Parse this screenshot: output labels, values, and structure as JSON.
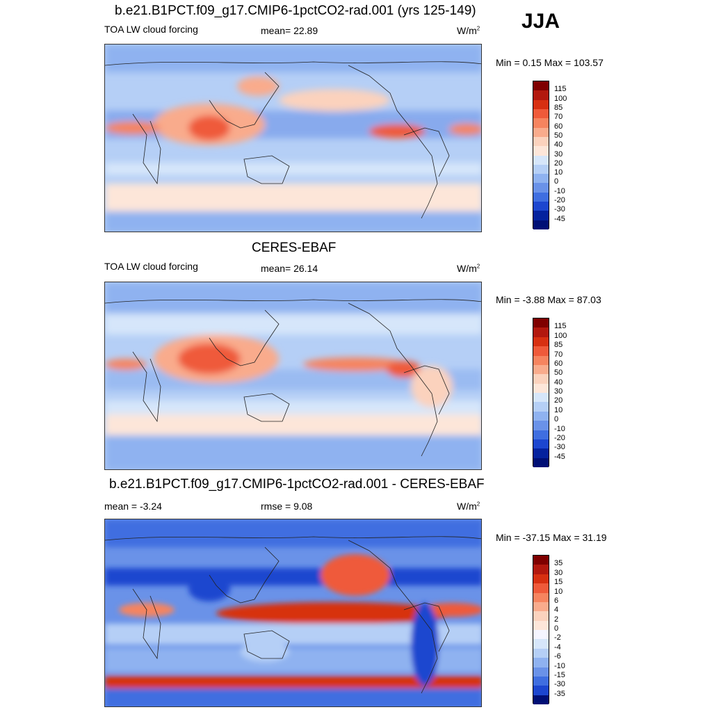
{
  "season": "JJA",
  "panels": [
    {
      "title": "b.e21.B1PCT.f09_g17.CMIP6-1pctCO2-rad.001 (yrs 125-149)",
      "variable": "TOA LW cloud forcing",
      "stat_left": "",
      "stat_center": "mean=  22.89",
      "units": "W/m",
      "units_sup": "2",
      "minmax": "Min =   0.15 Max = 103.57",
      "colorbar_labels": [
        "115",
        "100",
        "85",
        "70",
        "60",
        "50",
        "40",
        "30",
        "20",
        "10",
        "0",
        "-10",
        "-20",
        "-30",
        "-45"
      ]
    },
    {
      "title": "CERES-EBAF",
      "variable": "TOA LW cloud forcing",
      "stat_left": "",
      "stat_center": "mean=  26.14",
      "units": "W/m",
      "units_sup": "2",
      "minmax": "Min =  -3.88 Max =  87.03",
      "colorbar_labels": [
        "115",
        "100",
        "85",
        "70",
        "60",
        "50",
        "40",
        "30",
        "20",
        "10",
        "0",
        "-10",
        "-20",
        "-30",
        "-45"
      ]
    },
    {
      "title": "b.e21.B1PCT.f09_g17.CMIP6-1pctCO2-rad.001 - CERES-EBAF",
      "variable": "",
      "stat_left": "mean =  -3.24",
      "stat_center": "rmse =   9.08",
      "units": "W/m",
      "units_sup": "2",
      "minmax": "Min = -37.15 Max =  31.19",
      "colorbar_labels": [
        "35",
        "30",
        "15",
        "10",
        "6",
        "4",
        "2",
        "0",
        "-2",
        "-4",
        "-6",
        "-10",
        "-15",
        "-30",
        "-35"
      ]
    }
  ],
  "colors": {
    "abs_scale": [
      "#7f0000",
      "#b2180e",
      "#d73011",
      "#ef5a3a",
      "#f6845f",
      "#f9ab8c",
      "#fbd2bd",
      "#fde6d9",
      "#d6e6fa",
      "#b5cff6",
      "#8fb2f0",
      "#6a92e8",
      "#3f6ee0",
      "#1c46cf",
      "#05229e",
      "#000f75"
    ],
    "diff_scale": [
      "#7f0000",
      "#b2180e",
      "#d73011",
      "#ef5a3a",
      "#f6845f",
      "#f9ab8c",
      "#fbd2bd",
      "#fde6d9",
      "#f5f5ff",
      "#d6e6fa",
      "#b5cff6",
      "#8fb2f0",
      "#6a92e8",
      "#3f6ee0",
      "#1c46cf",
      "#000f75"
    ]
  }
}
